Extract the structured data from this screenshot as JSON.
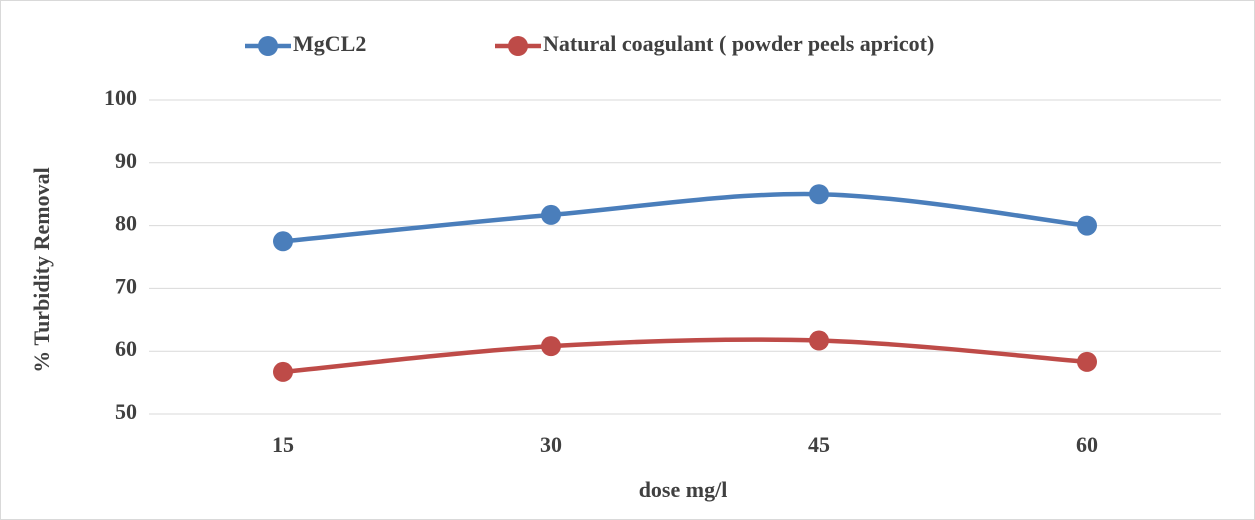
{
  "chart_data": {
    "type": "line",
    "categories": [
      "15",
      "30",
      "45",
      "60"
    ],
    "series": [
      {
        "name": "MgCL2",
        "color": "#4a7ebb",
        "values": [
          77.5,
          81.7,
          85,
          80
        ]
      },
      {
        "name": "Natural coagulant ( powder peels apricot)",
        "color": "#be4b48",
        "values": [
          56.7,
          60.8,
          61.7,
          58.3
        ]
      }
    ],
    "xlabel": "dose mg/l",
    "ylabel": "% Turbidity Removal",
    "ylim": [
      50,
      100
    ],
    "yticks": [
      50,
      60,
      70,
      80,
      90,
      100
    ],
    "grid": true,
    "legend": "top",
    "smooth": true
  }
}
